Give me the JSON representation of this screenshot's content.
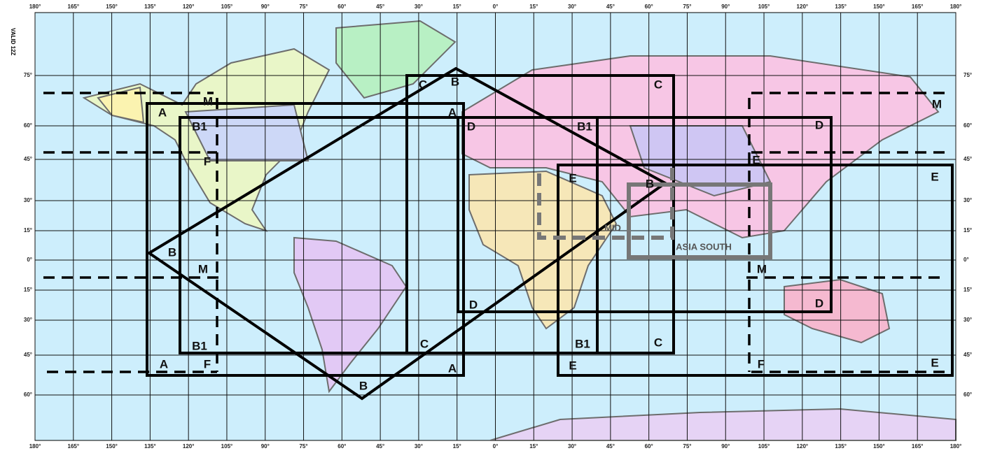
{
  "map": {
    "stamp": "VALID 12Z",
    "lon_labels_top": [
      "180°",
      "165°",
      "150°",
      "135°",
      "120°",
      "105°",
      "90°",
      "75°",
      "60°",
      "45°",
      "30°",
      "15°",
      "0°",
      "15°",
      "30°",
      "45°",
      "60°",
      "75°",
      "90°",
      "105°",
      "120°",
      "135°",
      "150°",
      "165°",
      "180°"
    ],
    "lon_labels_bottom": [
      "180°",
      "165°",
      "150°",
      "135°",
      "120°",
      "105°",
      "90°",
      "75°",
      "60°",
      "45°",
      "30°",
      "15°",
      "0°",
      "15°",
      "30°",
      "45°",
      "60°",
      "75°",
      "90°",
      "105°",
      "120°",
      "135°",
      "150°",
      "165°",
      "180°"
    ],
    "lat_labels_left": [
      "75°",
      "60°",
      "45°",
      "30°",
      "15°",
      "0°",
      "15°",
      "30°",
      "45°",
      "60°"
    ],
    "lat_labels_right": [
      "75°",
      "60°",
      "45°",
      "30°",
      "15°",
      "0°",
      "15°",
      "30°",
      "45°",
      "60°"
    ],
    "region_labels": [
      "A",
      "A",
      "A",
      "A",
      "B",
      "B",
      "B",
      "B",
      "B1",
      "B1",
      "B1",
      "B1",
      "C",
      "C",
      "C",
      "C",
      "D",
      "D",
      "D",
      "D",
      "E",
      "E",
      "E",
      "E",
      "E",
      "F",
      "F",
      "F",
      "M",
      "M",
      "M",
      "M",
      "MID",
      "ASIA SOUTH"
    ]
  }
}
